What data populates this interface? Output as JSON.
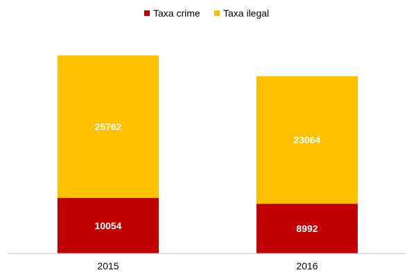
{
  "chart_data": {
    "type": "bar",
    "stacked": true,
    "categories": [
      "2015",
      "2016"
    ],
    "series": [
      {
        "name": "Taxa crime",
        "values": [
          10054,
          8992
        ],
        "color": "#c00000"
      },
      {
        "name": "Taxa ilegal",
        "values": [
          25762,
          23064
        ],
        "color": "#ffc000"
      }
    ],
    "value_labels": {
      "Taxa crime": [
        "10054",
        "8992"
      ],
      "Taxa ilegal": [
        "25762",
        "23064"
      ]
    },
    "title": "",
    "xlabel": "",
    "ylabel": "",
    "ylim": [
      0,
      40000
    ],
    "grid": false,
    "legend": "top-center"
  }
}
